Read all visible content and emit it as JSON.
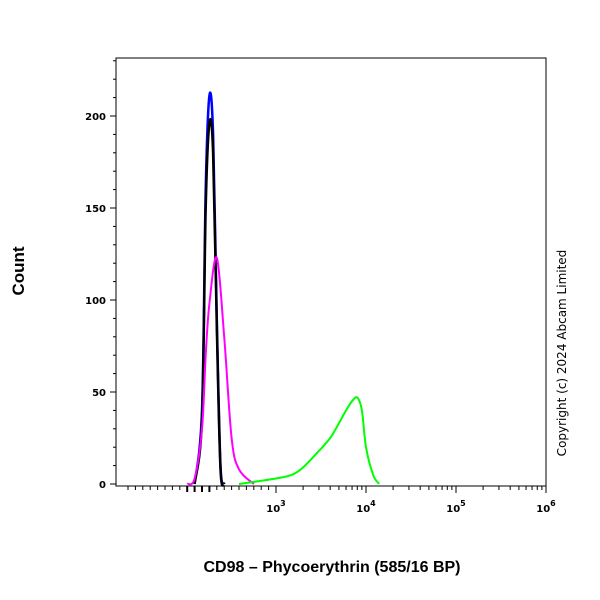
{
  "chart_data": {
    "type": "line",
    "xlabel": "CD98 – Phycoerythrin (585/16 BP)",
    "ylabel": "Count",
    "xscale": "biexponential",
    "ylim": [
      0,
      240
    ],
    "yticks": [
      0,
      50,
      100,
      150,
      200
    ],
    "xtick_labels": [
      {
        "base": "10",
        "exp": "3",
        "value": 1000
      },
      {
        "base": "10",
        "exp": "4",
        "value": 10000
      },
      {
        "base": "10",
        "exp": "5",
        "value": 100000
      },
      {
        "base": "10",
        "exp": "6",
        "value": 1000000
      }
    ],
    "grid": false,
    "series": [
      {
        "color": "#0000ff",
        "x": [
          -100,
          0,
          50,
          100,
          150,
          200,
          250,
          300
        ],
        "y": [
          0,
          40,
          160,
          211,
          190,
          90,
          10,
          0
        ]
      },
      {
        "color": "#000000",
        "x": [
          -100,
          0,
          50,
          100,
          150,
          200,
          250,
          300
        ],
        "y": [
          0,
          35,
          150,
          196,
          180,
          85,
          8,
          0
        ]
      },
      {
        "color": "#ff00ff",
        "x": [
          -200,
          -100,
          0,
          50,
          100,
          200,
          300,
          400,
          500,
          700
        ],
        "y": [
          0,
          3,
          30,
          70,
          98,
          123,
          80,
          25,
          8,
          0
        ]
      },
      {
        "color": "#00ff00",
        "x": [
          500,
          1000,
          1500,
          2000,
          3000,
          4000,
          5000,
          6000,
          7000,
          8000,
          9000,
          10000,
          12000,
          14000
        ],
        "y": [
          0,
          3,
          5,
          9,
          18,
          25,
          33,
          40,
          45,
          47,
          40,
          20,
          5,
          0
        ]
      }
    ]
  },
  "copyright": "Copyright (c) 2024 Abcam Limited"
}
